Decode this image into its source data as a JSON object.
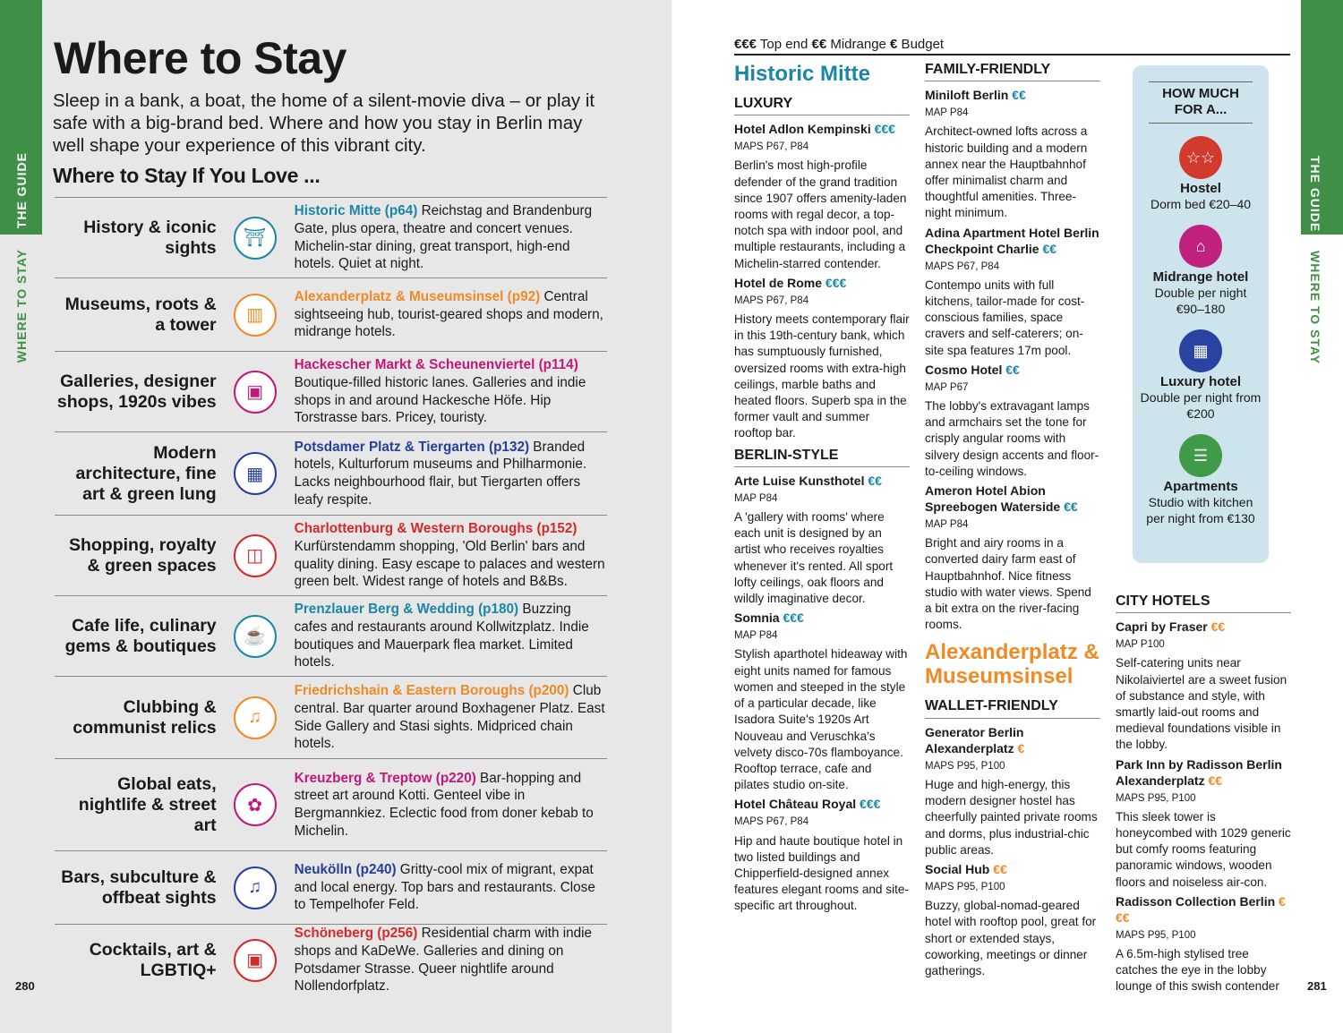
{
  "left": {
    "tab_top": "THE GUIDE",
    "tab_bottom": "WHERE TO STAY",
    "title": "Where to Stay",
    "intro": "Sleep in a bank, a boat, the home of a silent-movie diva – or play it safe with a big-brand bed. Where and how you stay in Berlin may well shape your experience of this vibrant city.",
    "subtitle": "Where to Stay If You Love ...",
    "page_number": "280",
    "rows": [
      {
        "label": "History & iconic sights",
        "area": "Historic Mitte (p64)",
        "text": " Reichstag and Brandenburg Gate, plus opera, theatre and concert venues. Michelin-star dining, great transport, high-end hotels. Quiet at night.",
        "color": "#1b86a6",
        "icon": "landmark-icon"
      },
      {
        "label": "Museums, roots & a tower",
        "area": "Alexanderplatz & Museumsinsel (p92)",
        "text": " Central sightseeing hub, tourist-geared shops and modern, midrange hotels.",
        "color": "#f08a24",
        "icon": "museum-icon"
      },
      {
        "label": "Galleries, designer shops, 1920s vibes",
        "area": "Hackescher Markt & Scheunenviertel (p114)",
        "text": " Boutique-filled historic lanes. Galleries and indie shops in and around Hackesche Höfe. Hip Torstrasse bars. Pricey, touristy.",
        "color": "#c2187a",
        "icon": "gallery-icon"
      },
      {
        "label": "Modern architecture, fine art & green lung",
        "area": "Potsdamer Platz & Tiergarten (p132)",
        "text": " Branded hotels, Kulturforum museums and Philharmonie. Lacks neighbourhood flair, but Tiergarten offers leafy respite.",
        "color": "#263f97",
        "icon": "building-icon"
      },
      {
        "label": "Shopping, royalty & green spaces",
        "area": "Charlottenburg & Western Boroughs (p152)",
        "text": " Kurfürstendamm shopping, 'Old Berlin' bars and quality dining. Easy escape to palaces and western green belt. Widest range of hotels and B&Bs.",
        "color": "#d42a2a",
        "icon": "shopping-bag-icon"
      },
      {
        "label": "Cafe life, culinary gems & boutiques",
        "area": "Prenzlauer Berg & Wedding (p180)",
        "text": " Buzzing cafes and restaurants around Kollwitzplatz. Indie boutiques and Mauerpark flea market. Limited hotels.",
        "color": "#1b86a6",
        "icon": "food-icon"
      },
      {
        "label": "Clubbing & communist relics",
        "area": "Friedrichshain & Eastern Boroughs (p200)",
        "text": " Club central. Bar quarter around Boxhagener Platz. East Side Gallery and Stasi sights. Midpriced chain hotels.",
        "color": "#f08a24",
        "icon": "music-icon"
      },
      {
        "label": "Global eats, nightlife & street art",
        "area": "Kreuzberg & Treptow (p220)",
        "text": " Bar-hopping and street art around Kotti. Genteel vibe in Bergmannkiez. Eclectic food from doner kebab to Michelin.",
        "color": "#c2187a",
        "icon": "street-food-icon"
      },
      {
        "label": "Bars, subculture & offbeat sights",
        "area": "Neukölln (p240)",
        "text": " Gritty-cool mix of migrant, expat and local energy. Top bars and restaurants. Close to Tempelhofer Feld.",
        "color": "#263f97",
        "icon": "music-icon"
      },
      {
        "label": "Cocktails, art & LGBTIQ+",
        "area": "Schöneberg (p256)",
        "text": " Residential charm with indie shops and KaDeWe. Galleries and dining on Potsdamer Strasse. Queer nightlife around Nollendorfplatz.",
        "color": "#d42a2a",
        "icon": "gallery-icon"
      }
    ]
  },
  "right": {
    "tab_top": "THE GUIDE",
    "tab_bottom": "WHERE TO STAY",
    "page_number": "281",
    "legend": {
      "s1": "€€€",
      "t1": " Top end ",
      "s2": "€€",
      "t2": " Midrange ",
      "s3": "€",
      "t3": " Budget"
    },
    "col1": {
      "area": "Historic Mitte",
      "sections": [
        {
          "cat": "LUXURY",
          "hotels": [
            {
              "name": "Hotel Adlon Kempinski ",
              "price": "€€€",
              "map": "MAPS P67, P84",
              "desc": "Berlin's most high-profile defender of the grand tradition since 1907 offers amenity-laden rooms with regal decor, a top-notch spa with indoor pool, and multiple restaurants, including a Michelin-starred contender."
            },
            {
              "name": "Hotel de Rome ",
              "price": "€€€",
              "map": "MAPS P67, P84",
              "desc": "History meets contemporary flair in this 19th-century bank, which has sumptuously furnished, oversized rooms with extra-high ceilings, marble baths and heated floors. Superb spa in the former vault and summer rooftop bar."
            }
          ]
        },
        {
          "cat": "BERLIN-STYLE",
          "hotels": [
            {
              "name": "Arte Luise Kunsthotel ",
              "price": "€€",
              "map": "MAP P84",
              "desc": "A 'gallery with rooms' where each unit is designed by an artist who receives royalties whenever it's rented. All sport lofty ceilings, oak floors and wildly imaginative decor."
            },
            {
              "name": "Somnia ",
              "price": "€€€",
              "map": "MAP P84",
              "desc": "Stylish aparthotel hideaway with eight units named for famous women and steeped in the style of a particular decade, like Isadora Suite's 1920s Art Nouveau and Veruschka's velvety disco-70s flamboyance. Rooftop terrace, cafe and pilates studio on-site."
            },
            {
              "name": "Hotel Château Royal ",
              "price": "€€€",
              "map": "MAPS P67, P84",
              "desc": "Hip and haute boutique hotel in two listed buildings and Chipperfield-designed annex features elegant rooms and site-specific art throughout."
            }
          ]
        }
      ]
    },
    "col2": {
      "sections": [
        {
          "cat": "FAMILY-FRIENDLY",
          "hotels": [
            {
              "name": "Miniloft Berlin ",
              "price": "€€",
              "map": "MAP P84",
              "desc": "Architect-owned lofts across a historic building and a modern annex near the Hauptbahnhof offer minimalist charm and thoughtful amenities. Three-night minimum."
            },
            {
              "name": "Adina Apartment Hotel Berlin Checkpoint Charlie ",
              "price": "€€",
              "map": "MAPS P67, P84",
              "desc": "Contempo units with full kitchens, tailor-made for cost-conscious families, space cravers and self-caterers; on-site spa features 17m pool."
            },
            {
              "name": "Cosmo Hotel ",
              "price": "€€",
              "map": "MAP P67",
              "desc": "The lobby's extravagant lamps and armchairs set the tone for crisply angular rooms with silvery design accents and floor-to-ceiling windows."
            },
            {
              "name": "Ameron Hotel Abion Spreebogen Waterside ",
              "price": "€€",
              "map": "MAP P84",
              "desc": "Bright and airy rooms in a converted dairy farm east of Hauptbahnhof. Nice fitness studio with water views. Spend a bit extra on the river-facing rooms."
            }
          ]
        }
      ],
      "area2": "Alexanderplatz & Museumsinsel",
      "sections2": [
        {
          "cat": "WALLET-FRIENDLY",
          "hotels": [
            {
              "name": "Generator Berlin Alexanderplatz ",
              "price": "€",
              "map": "MAPS P95, P100",
              "desc": "Huge and high-energy, this modern designer hostel has cheerfully painted private rooms and dorms, plus industrial-chic public areas."
            },
            {
              "name": "Social Hub ",
              "price": "€€",
              "map": "MAPS P95, P100",
              "desc": "Buzzy, global-nomad-geared hotel with rooftop pool, great for short or extended stays, coworking, meetings or dinner gatherings."
            }
          ]
        }
      ]
    },
    "box": {
      "title": "HOW MUCH FOR A...",
      "items": [
        {
          "name": "Hostel",
          "price": "Dorm bed €20–40",
          "color": "#d23a2e",
          "icon": "stars-icon"
        },
        {
          "name": "Midrange hotel",
          "price": "Double per night €90–180",
          "color": "#c0217f",
          "icon": "bed-icon"
        },
        {
          "name": "Luxury hotel",
          "price": "Double per night from €200",
          "color": "#2a43a0",
          "icon": "tower-icon"
        },
        {
          "name": "Apartments",
          "price": "Studio with kitchen per night from €130",
          "color": "#3f9a4a",
          "icon": "bunk-bed-icon"
        }
      ]
    },
    "col3": {
      "sections": [
        {
          "cat": "CITY HOTELS",
          "hotels": [
            {
              "name": "Capri by Fraser ",
              "price": "€€",
              "map": "MAP P100",
              "desc": "Self-catering units near Nikolaiviertel are a sweet fusion of substance and style, with smartly laid-out rooms and medieval foundations visible in the lobby."
            },
            {
              "name": "Park Inn by Radisson Berlin Alexanderplatz ",
              "price": "€€",
              "map": "MAPS P95, P100",
              "desc": "This sleek tower is honeycombed with 1029 generic but comfy rooms featuring panoramic windows, wooden floors and noiseless air-con."
            },
            {
              "name": "Radisson Collection Berlin ",
              "price": "€€€",
              "map": "MAPS P95, P100",
              "desc": "A 6.5m-high stylised tree catches the eye in the lobby lounge of this swish contender"
            }
          ]
        }
      ]
    }
  }
}
